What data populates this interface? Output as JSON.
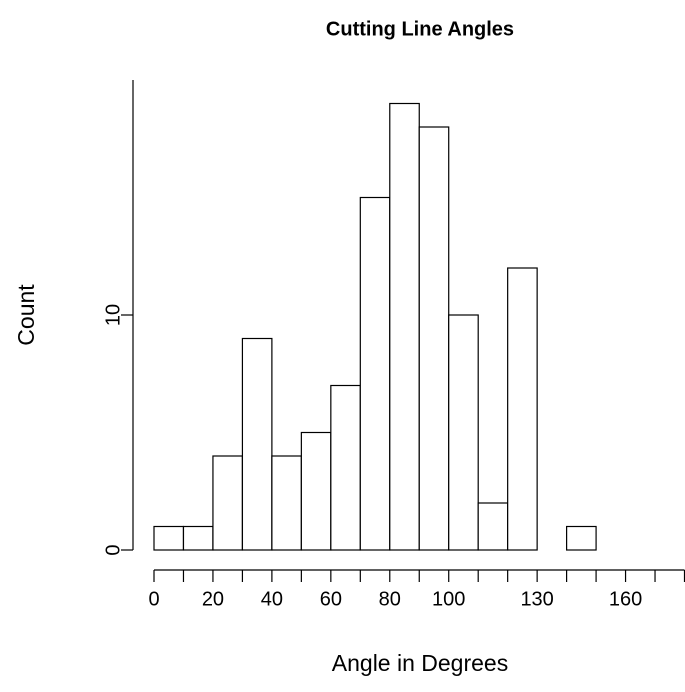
{
  "chart_data": {
    "type": "histogram",
    "title": "Cutting Line Angles",
    "x_label": "Angle in Degrees",
    "y_label": "Count",
    "bins": [
      0,
      10,
      20,
      30,
      40,
      50,
      60,
      70,
      80,
      90,
      100,
      110,
      120,
      130,
      140,
      150,
      160,
      170,
      180
    ],
    "values": [
      1,
      1,
      4,
      9,
      4,
      5,
      7,
      15,
      19,
      18,
      10,
      2,
      12,
      0,
      1,
      0,
      0,
      0
    ],
    "color": "#ffffff",
    "xlim": [
      0,
      180
    ],
    "xticks": [
      0,
      20,
      40,
      60,
      80,
      100,
      130,
      160
    ],
    "ylim": [
      0,
      20
    ],
    "yticks": [
      0,
      10
    ],
    "grid": false
  }
}
